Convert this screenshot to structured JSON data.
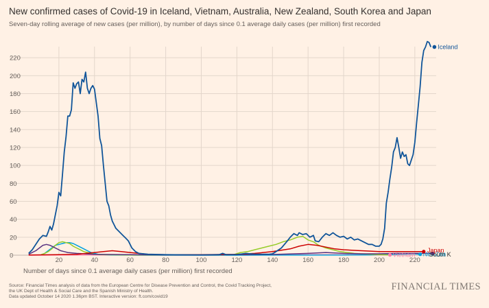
{
  "title": "New confirmed cases of Covid-19 in Iceland, Vietnam, Australia, New Zealand, South Korea and Japan",
  "subtitle": "Seven-day rolling average of new cases (per million), by number of days since 0.1 average daily cases (per million) first recorded",
  "xlabel": "Number of days since 0.1 average daily cases (per million) first recorded",
  "source_lines": [
    "Source: Financial Times analysis of data from the European Centre for Disease Prevention and Control, the Covid Tracking Project,",
    "the UK Dept of Health & Social Care and the Spanish Ministry of Health.",
    "Data updated October 14 2020 1.36pm BST. Interactive version: ft.com/covid19"
  ],
  "brand": "FINANCIAL TIMES",
  "colors": {
    "background": "#fff1e5",
    "grid": "#e3d6cb",
    "axis_text": "#66605c"
  },
  "chart_data": {
    "type": "line",
    "xlim": [
      0,
      232
    ],
    "ylim": [
      0,
      240
    ],
    "x_ticks": [
      20,
      40,
      60,
      80,
      100,
      120,
      140,
      160,
      180,
      200,
      220
    ],
    "y_ticks": [
      0,
      20,
      40,
      60,
      80,
      100,
      120,
      140,
      160,
      180,
      200,
      220
    ],
    "grid": true,
    "series": [
      {
        "name": "Iceland",
        "color": "#0f5499",
        "label_color": "#0f5499",
        "end_label": "Iceland",
        "points": [
          [
            3,
            2
          ],
          [
            5,
            6
          ],
          [
            7,
            12
          ],
          [
            9,
            18
          ],
          [
            11,
            22
          ],
          [
            13,
            21
          ],
          [
            14,
            26
          ],
          [
            15,
            32
          ],
          [
            16,
            28
          ],
          [
            17,
            35
          ],
          [
            18,
            45
          ],
          [
            19,
            55
          ],
          [
            20,
            70
          ],
          [
            21,
            66
          ],
          [
            22,
            90
          ],
          [
            23,
            115
          ],
          [
            24,
            132
          ],
          [
            25,
            155
          ],
          [
            26,
            155
          ],
          [
            27,
            162
          ],
          [
            28,
            192
          ],
          [
            29,
            186
          ],
          [
            30,
            191
          ],
          [
            31,
            193
          ],
          [
            32,
            180
          ],
          [
            33,
            196
          ],
          [
            34,
            193
          ],
          [
            35,
            204
          ],
          [
            36,
            186
          ],
          [
            37,
            180
          ],
          [
            38,
            186
          ],
          [
            39,
            189
          ],
          [
            40,
            185
          ],
          [
            41,
            170
          ],
          [
            42,
            155
          ],
          [
            43,
            130
          ],
          [
            44,
            122
          ],
          [
            45,
            100
          ],
          [
            46,
            80
          ],
          [
            47,
            60
          ],
          [
            48,
            55
          ],
          [
            49,
            45
          ],
          [
            50,
            38
          ],
          [
            51,
            34
          ],
          [
            52,
            30
          ],
          [
            53,
            28
          ],
          [
            54,
            26
          ],
          [
            55,
            24
          ],
          [
            56,
            22
          ],
          [
            57,
            20
          ],
          [
            58,
            18
          ],
          [
            59,
            16
          ],
          [
            60,
            12
          ],
          [
            61,
            8
          ],
          [
            62,
            6
          ],
          [
            63,
            4
          ],
          [
            65,
            2
          ],
          [
            70,
            1
          ],
          [
            80,
            0.5
          ],
          [
            100,
            0.3
          ],
          [
            110,
            0.5
          ],
          [
            112,
            2
          ],
          [
            114,
            0.5
          ],
          [
            120,
            0.5
          ],
          [
            125,
            2
          ],
          [
            130,
            1
          ],
          [
            138,
            1
          ],
          [
            140,
            1.5
          ],
          [
            142,
            4
          ],
          [
            145,
            8
          ],
          [
            148,
            15
          ],
          [
            150,
            20
          ],
          [
            152,
            24
          ],
          [
            154,
            22
          ],
          [
            155,
            25
          ],
          [
            157,
            23
          ],
          [
            159,
            24
          ],
          [
            161,
            20
          ],
          [
            163,
            22
          ],
          [
            164,
            16
          ],
          [
            166,
            15
          ],
          [
            168,
            20
          ],
          [
            170,
            24
          ],
          [
            172,
            22
          ],
          [
            174,
            25
          ],
          [
            176,
            22
          ],
          [
            178,
            20
          ],
          [
            180,
            21
          ],
          [
            182,
            18
          ],
          [
            184,
            20
          ],
          [
            186,
            17
          ],
          [
            188,
            18
          ],
          [
            190,
            16
          ],
          [
            192,
            14
          ],
          [
            194,
            12
          ],
          [
            196,
            12
          ],
          [
            198,
            10
          ],
          [
            200,
            10
          ],
          [
            201,
            12
          ],
          [
            202,
            18
          ],
          [
            203,
            30
          ],
          [
            204,
            58
          ],
          [
            205,
            70
          ],
          [
            206,
            85
          ],
          [
            207,
            98
          ],
          [
            208,
            115
          ],
          [
            209,
            120
          ],
          [
            210,
            131
          ],
          [
            211,
            120
          ],
          [
            212,
            108
          ],
          [
            213,
            115
          ],
          [
            214,
            110
          ],
          [
            215,
            112
          ],
          [
            216,
            102
          ],
          [
            217,
            100
          ],
          [
            218,
            106
          ],
          [
            219,
            112
          ],
          [
            220,
            126
          ],
          [
            221,
            148
          ],
          [
            222,
            168
          ],
          [
            223,
            188
          ],
          [
            224,
            215
          ],
          [
            225,
            228
          ],
          [
            226,
            232
          ],
          [
            227,
            238
          ],
          [
            228,
            237
          ],
          [
            229,
            232
          ]
        ]
      },
      {
        "name": "Vietnam",
        "color": "#ff7faa",
        "label_color": "#ff7faa",
        "end_label": "Vietnam",
        "points": [
          [
            3,
            0
          ],
          [
            20,
            0.2
          ],
          [
            40,
            0.3
          ],
          [
            60,
            0.2
          ],
          [
            100,
            0
          ],
          [
            120,
            0.2
          ],
          [
            140,
            0.3
          ],
          [
            160,
            0.5
          ],
          [
            180,
            0.5
          ],
          [
            200,
            0.4
          ],
          [
            206,
            0.3
          ]
        ]
      },
      {
        "name": "New Zealand",
        "color": "#00a0dd",
        "label_color": "#00a0dd",
        "end_label": "NewZea",
        "points": [
          [
            10,
            0.5
          ],
          [
            12,
            2
          ],
          [
            14,
            5
          ],
          [
            16,
            8
          ],
          [
            18,
            11
          ],
          [
            20,
            12
          ],
          [
            22,
            13
          ],
          [
            24,
            14
          ],
          [
            26,
            14
          ],
          [
            28,
            13
          ],
          [
            30,
            11
          ],
          [
            32,
            9
          ],
          [
            34,
            7
          ],
          [
            36,
            5
          ],
          [
            38,
            3
          ],
          [
            40,
            2
          ],
          [
            42,
            1
          ],
          [
            45,
            0.5
          ],
          [
            50,
            0.2
          ],
          [
            70,
            0
          ],
          [
            120,
            0
          ],
          [
            180,
            0.2
          ],
          [
            195,
            0.3
          ],
          [
            200,
            0.5
          ],
          [
            210,
            1
          ],
          [
            220,
            1.5
          ],
          [
            223,
            1
          ]
        ]
      },
      {
        "name": "Australia",
        "color": "#96cc28",
        "label_color": "#96cc28",
        "end_label": "",
        "points": [
          [
            10,
            0.5
          ],
          [
            12,
            2
          ],
          [
            14,
            4
          ],
          [
            16,
            7
          ],
          [
            18,
            11
          ],
          [
            20,
            14
          ],
          [
            22,
            15
          ],
          [
            24,
            14
          ],
          [
            26,
            13
          ],
          [
            28,
            10
          ],
          [
            30,
            8
          ],
          [
            32,
            6
          ],
          [
            34,
            4
          ],
          [
            36,
            3
          ],
          [
            38,
            2
          ],
          [
            40,
            1
          ],
          [
            45,
            0.5
          ],
          [
            60,
            0.2
          ],
          [
            100,
            0.3
          ],
          [
            118,
            0.5
          ],
          [
            122,
            3
          ],
          [
            126,
            4
          ],
          [
            130,
            6
          ],
          [
            134,
            8
          ],
          [
            138,
            10
          ],
          [
            142,
            12
          ],
          [
            146,
            15
          ],
          [
            150,
            17
          ],
          [
            154,
            20
          ],
          [
            157,
            21
          ],
          [
            160,
            17
          ],
          [
            163,
            15
          ],
          [
            166,
            11
          ],
          [
            170,
            8
          ],
          [
            174,
            6
          ],
          [
            178,
            4
          ],
          [
            182,
            3
          ],
          [
            186,
            2
          ],
          [
            190,
            1.5
          ],
          [
            200,
            0.5
          ],
          [
            205,
            0.3
          ]
        ]
      },
      {
        "name": "South Korea",
        "color": "#593380",
        "label_color": "#33302e",
        "end_label": "South K",
        "points": [
          [
            3,
            1
          ],
          [
            5,
            3
          ],
          [
            7,
            5
          ],
          [
            9,
            8
          ],
          [
            11,
            11
          ],
          [
            13,
            12
          ],
          [
            15,
            11
          ],
          [
            17,
            9
          ],
          [
            19,
            7
          ],
          [
            21,
            5
          ],
          [
            23,
            4
          ],
          [
            25,
            3
          ],
          [
            30,
            2
          ],
          [
            40,
            1
          ],
          [
            60,
            0.5
          ],
          [
            80,
            0.3
          ],
          [
            120,
            0.5
          ],
          [
            140,
            0.8
          ],
          [
            160,
            2
          ],
          [
            170,
            3
          ],
          [
            180,
            2
          ],
          [
            190,
            1.5
          ],
          [
            200,
            1.5
          ],
          [
            210,
            2
          ],
          [
            220,
            2
          ],
          [
            230,
            2
          ]
        ]
      },
      {
        "name": "Japan",
        "color": "#cc0000",
        "label_color": "#cc0000",
        "end_label": "Japan",
        "points": [
          [
            3,
            0.2
          ],
          [
            20,
            0.5
          ],
          [
            30,
            1
          ],
          [
            40,
            3
          ],
          [
            45,
            4
          ],
          [
            50,
            5
          ],
          [
            55,
            4
          ],
          [
            60,
            3
          ],
          [
            70,
            1
          ],
          [
            80,
            0.5
          ],
          [
            100,
            0.5
          ],
          [
            120,
            1
          ],
          [
            130,
            2
          ],
          [
            140,
            4
          ],
          [
            150,
            7
          ],
          [
            155,
            10
          ],
          [
            160,
            12
          ],
          [
            165,
            11
          ],
          [
            170,
            9
          ],
          [
            175,
            7
          ],
          [
            180,
            6
          ],
          [
            190,
            5
          ],
          [
            200,
            4
          ],
          [
            210,
            4
          ],
          [
            220,
            4
          ],
          [
            225,
            4
          ]
        ]
      }
    ]
  }
}
